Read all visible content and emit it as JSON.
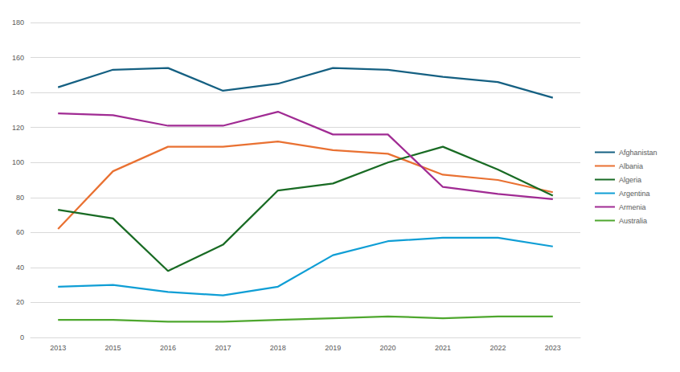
{
  "chart_data": {
    "type": "line",
    "categories": [
      "2013",
      "2015",
      "2016",
      "2017",
      "2018",
      "2019",
      "2020",
      "2021",
      "2022",
      "2023"
    ],
    "series": [
      {
        "name": "Afghanistan",
        "color": "#156082",
        "values": [
          143,
          153,
          154,
          141,
          145,
          154,
          153,
          149,
          146,
          137
        ]
      },
      {
        "name": "Albania",
        "color": "#E97132",
        "values": [
          62,
          95,
          109,
          109,
          112,
          107,
          105,
          93,
          90,
          83
        ]
      },
      {
        "name": "Algeria",
        "color": "#196B24",
        "values": [
          73,
          68,
          38,
          53,
          84,
          88,
          100,
          109,
          96,
          81
        ]
      },
      {
        "name": "Argentina",
        "color": "#0F9ED5",
        "values": [
          29,
          30,
          26,
          24,
          29,
          47,
          55,
          57,
          57,
          52
        ]
      },
      {
        "name": "Armenia",
        "color": "#A02B93",
        "values": [
          128,
          127,
          121,
          121,
          129,
          116,
          116,
          86,
          82,
          79
        ]
      },
      {
        "name": "Australia",
        "color": "#4EA72E",
        "values": [
          10,
          10,
          9,
          9,
          10,
          11,
          12,
          11,
          12,
          12
        ]
      }
    ],
    "ylim": [
      0,
      180
    ],
    "yticks": [
      0,
      20,
      40,
      60,
      80,
      100,
      120,
      140,
      160,
      180
    ],
    "grid": true,
    "legend": "right"
  }
}
